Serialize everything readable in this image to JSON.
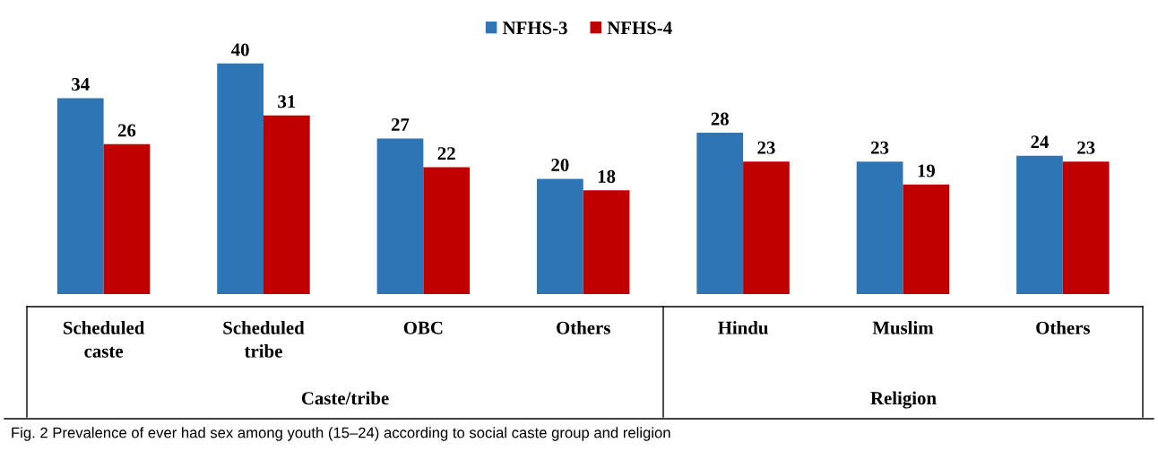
{
  "chart_data": {
    "type": "bar",
    "categories": [
      "Scheduled\ncaste",
      "Scheduled\ntribe",
      "OBC",
      "Others",
      "Hindu",
      "Muslim",
      "Others"
    ],
    "series": [
      {
        "name": "NFHS-3",
        "color": "#2e75b6",
        "values": [
          34,
          40,
          27,
          20,
          28,
          23,
          24
        ]
      },
      {
        "name": "NFHS-4",
        "color": "#c00000",
        "values": [
          26,
          31,
          22,
          18,
          23,
          19,
          23
        ]
      }
    ],
    "data_labels": true,
    "legend": "top",
    "annotations": [
      "Caste/tribe",
      "Religion",
      "Fig. 2 Prevalence of ever had sex among youth (15–24) according to social caste group and religion"
    ]
  }
}
